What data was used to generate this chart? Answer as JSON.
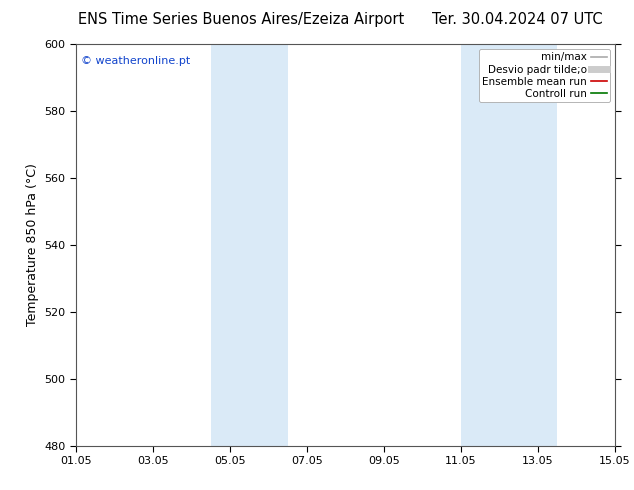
{
  "title_left": "ENS Time Series Buenos Aires/Ezeiza Airport",
  "title_right": "Ter. 30.04.2024 07 UTC",
  "ylabel": "Temperature 850 hPa (°C)",
  "ylim": [
    480,
    600
  ],
  "yticks": [
    480,
    500,
    520,
    540,
    560,
    580,
    600
  ],
  "xlim": [
    0,
    14
  ],
  "x_tick_labels": [
    "01.05",
    "03.05",
    "05.05",
    "07.05",
    "09.05",
    "11.05",
    "13.05",
    "15.05"
  ],
  "x_tick_positions": [
    0,
    2,
    4,
    6,
    8,
    10,
    12,
    14
  ],
  "shaded_bands": [
    {
      "x_start": 3.5,
      "x_end": 5.5,
      "color": "#daeaf7",
      "alpha": 1.0
    },
    {
      "x_start": 10.0,
      "x_end": 12.5,
      "color": "#daeaf7",
      "alpha": 1.0
    }
  ],
  "legend_items": [
    {
      "label": "min/max",
      "color": "#aaaaaa",
      "lw": 1.2,
      "ls": "-",
      "type": "line"
    },
    {
      "label": "Desvio padr tilde;o",
      "color": "#cccccc",
      "lw": 5,
      "ls": "-",
      "type": "line"
    },
    {
      "label": "Ensemble mean run",
      "color": "#cc0000",
      "lw": 1.2,
      "ls": "-",
      "type": "line"
    },
    {
      "label": "Controll run",
      "color": "#007700",
      "lw": 1.2,
      "ls": "-",
      "type": "line"
    }
  ],
  "watermark": "© weatheronline.pt",
  "watermark_color": "#1144cc",
  "bg_color": "#ffffff",
  "plot_bg_color": "#ffffff",
  "spine_color": "#555555",
  "title_fontsize": 10.5,
  "ylabel_fontsize": 9,
  "tick_fontsize": 8,
  "legend_fontsize": 7.5
}
